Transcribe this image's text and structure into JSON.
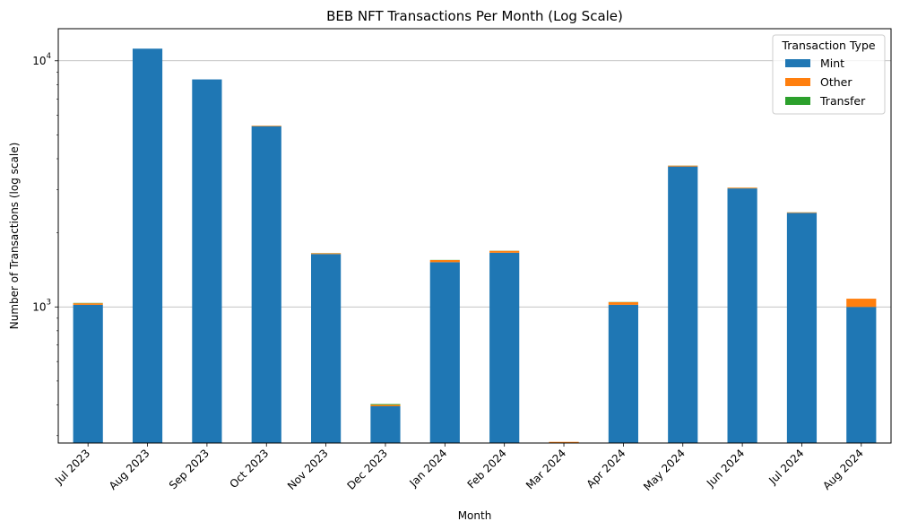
{
  "chart_data": {
    "type": "bar",
    "stacked": true,
    "title": "BEB NFT Transactions Per Month (Log Scale)",
    "xlabel": "Month",
    "ylabel": "Number of Transactions (log scale)",
    "yscale": "log",
    "ylim": [
      280,
      13500
    ],
    "ytick_labels": [
      {
        "value": 1000,
        "base": "10",
        "exp": "3"
      },
      {
        "value": 10000,
        "base": "10",
        "exp": "4"
      }
    ],
    "grid": "horizontal-major",
    "categories": [
      "Jul 2023",
      "Aug 2023",
      "Sep 2023",
      "Oct 2023",
      "Nov 2023",
      "Dec 2023",
      "Jan 2024",
      "Feb 2024",
      "Mar 2024",
      "Apr 2024",
      "May 2024",
      "Jun 2024",
      "Jul 2024",
      "Aug 2024"
    ],
    "series": [
      {
        "name": "Mint",
        "color": "#1f77b4",
        "values": [
          1020,
          11200,
          8400,
          5420,
          1640,
          395,
          1520,
          1660,
          0,
          1020,
          3720,
          3030,
          2410,
          1000
        ]
      },
      {
        "name": "Other",
        "color": "#ff7f0e",
        "values": [
          15,
          0,
          0,
          30,
          12,
          5,
          30,
          30,
          283,
          25,
          30,
          20,
          12,
          80
        ]
      },
      {
        "name": "Transfer",
        "color": "#2ca02c",
        "values": [
          3,
          0,
          0,
          3,
          2,
          3,
          2,
          2,
          0,
          2,
          3,
          2,
          2,
          0
        ]
      }
    ],
    "legend": {
      "title": "Transaction Type",
      "position": "top-right"
    }
  }
}
